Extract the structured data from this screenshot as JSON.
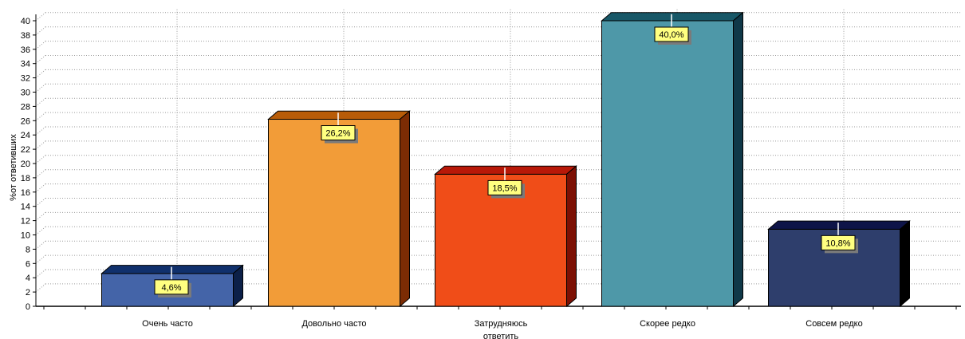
{
  "chart_data": {
    "type": "bar",
    "title": "",
    "xlabel": "",
    "ylabel": "%от ответивших",
    "ylim": [
      0,
      40
    ],
    "ytick_step": 2,
    "grid": true,
    "categories": [
      "Очень часто",
      "Довольно часто",
      "Затрудняюсь ответить",
      "Скорее редко",
      "Совсем редко"
    ],
    "category_lines": [
      [
        "Очень часто"
      ],
      [
        "Довольно часто"
      ],
      [
        "Затрудняюсь",
        "ответить"
      ],
      [
        "Скорее редко"
      ],
      [
        "Совсем редко"
      ]
    ],
    "values": [
      4.6,
      26.2,
      18.5,
      40.0,
      10.8
    ],
    "data_labels": [
      "4,6%",
      "26,2%",
      "18,5%",
      "40,0%",
      "10,8%"
    ],
    "colors": {
      "front": [
        "#4464a8",
        "#f29c38",
        "#f04d18",
        "#4e98a8",
        "#2e3e6c"
      ],
      "top": [
        "#10306c",
        "#b85c08",
        "#b81808",
        "#185868",
        "#0e1448"
      ],
      "side": [
        "#0c2048",
        "#7c2c04",
        "#7c1004",
        "#103848",
        "#000000"
      ],
      "label_bg": "#ffff80"
    }
  }
}
